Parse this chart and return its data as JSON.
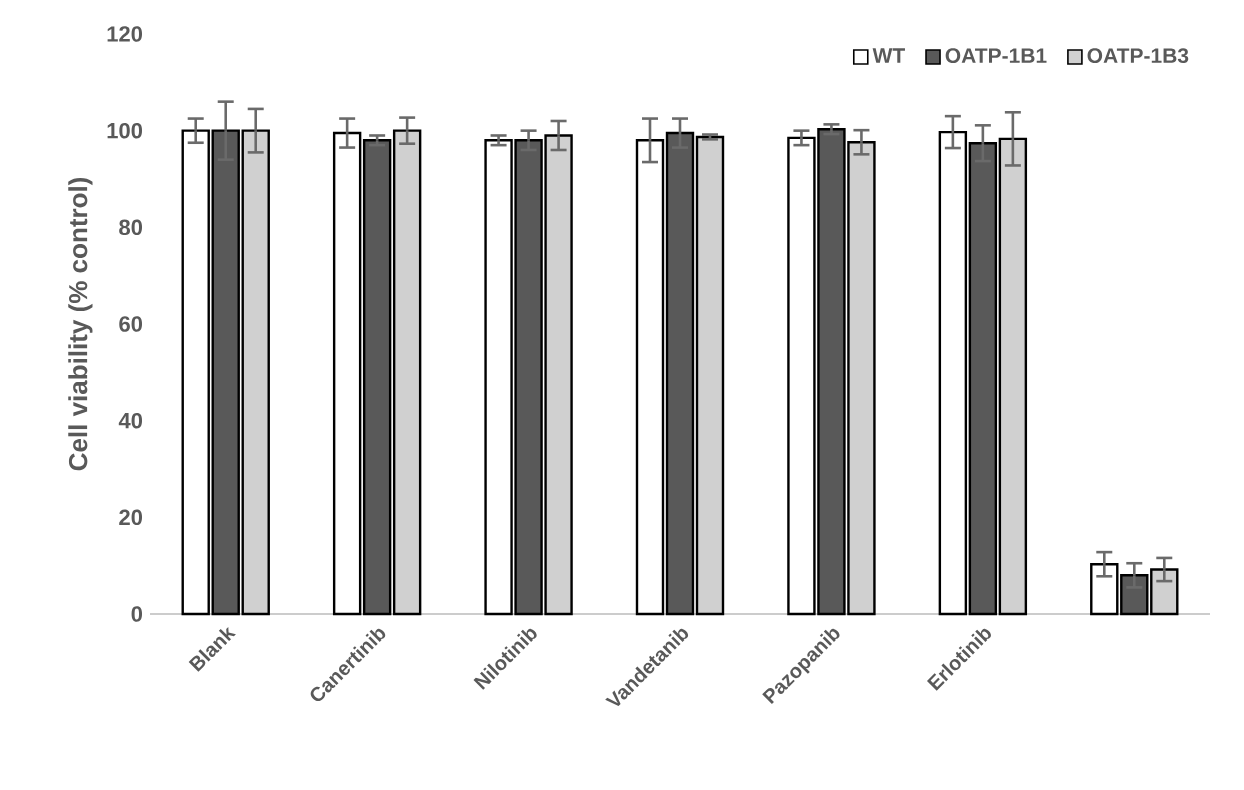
{
  "chart_data": {
    "type": "bar",
    "ylabel": "Cell viability (% control)",
    "categories": [
      "Blank",
      "Canertinib",
      "Nilotinib",
      "Vandetanib",
      "Pazopanib",
      "Erlotinib",
      null
    ],
    "series": [
      {
        "name": "WT",
        "color": "#ffffff",
        "values": [
          100,
          99.5,
          98,
          98,
          98.5,
          99.7,
          10.3
        ],
        "errors": [
          2.5,
          3,
          1,
          4.5,
          1.5,
          3.3,
          2.5
        ]
      },
      {
        "name": "OATP-1B1",
        "color": "#595959",
        "values": [
          100,
          98,
          98,
          99.5,
          100.3,
          97.4,
          8
        ],
        "errors": [
          6,
          1,
          2,
          3,
          1,
          3.7,
          2.5
        ]
      },
      {
        "name": "OATP-1B3",
        "color": "#d0d0d0",
        "values": [
          100,
          100,
          99,
          98.7,
          97.6,
          98.3,
          9.2
        ],
        "errors": [
          4.5,
          2.7,
          3,
          0.5,
          2.5,
          5.5,
          2.4
        ]
      }
    ],
    "ylim": [
      0,
      120
    ],
    "yticks": [
      0,
      20,
      40,
      60,
      80,
      100,
      120
    ],
    "grid": false,
    "legend": "top right"
  }
}
